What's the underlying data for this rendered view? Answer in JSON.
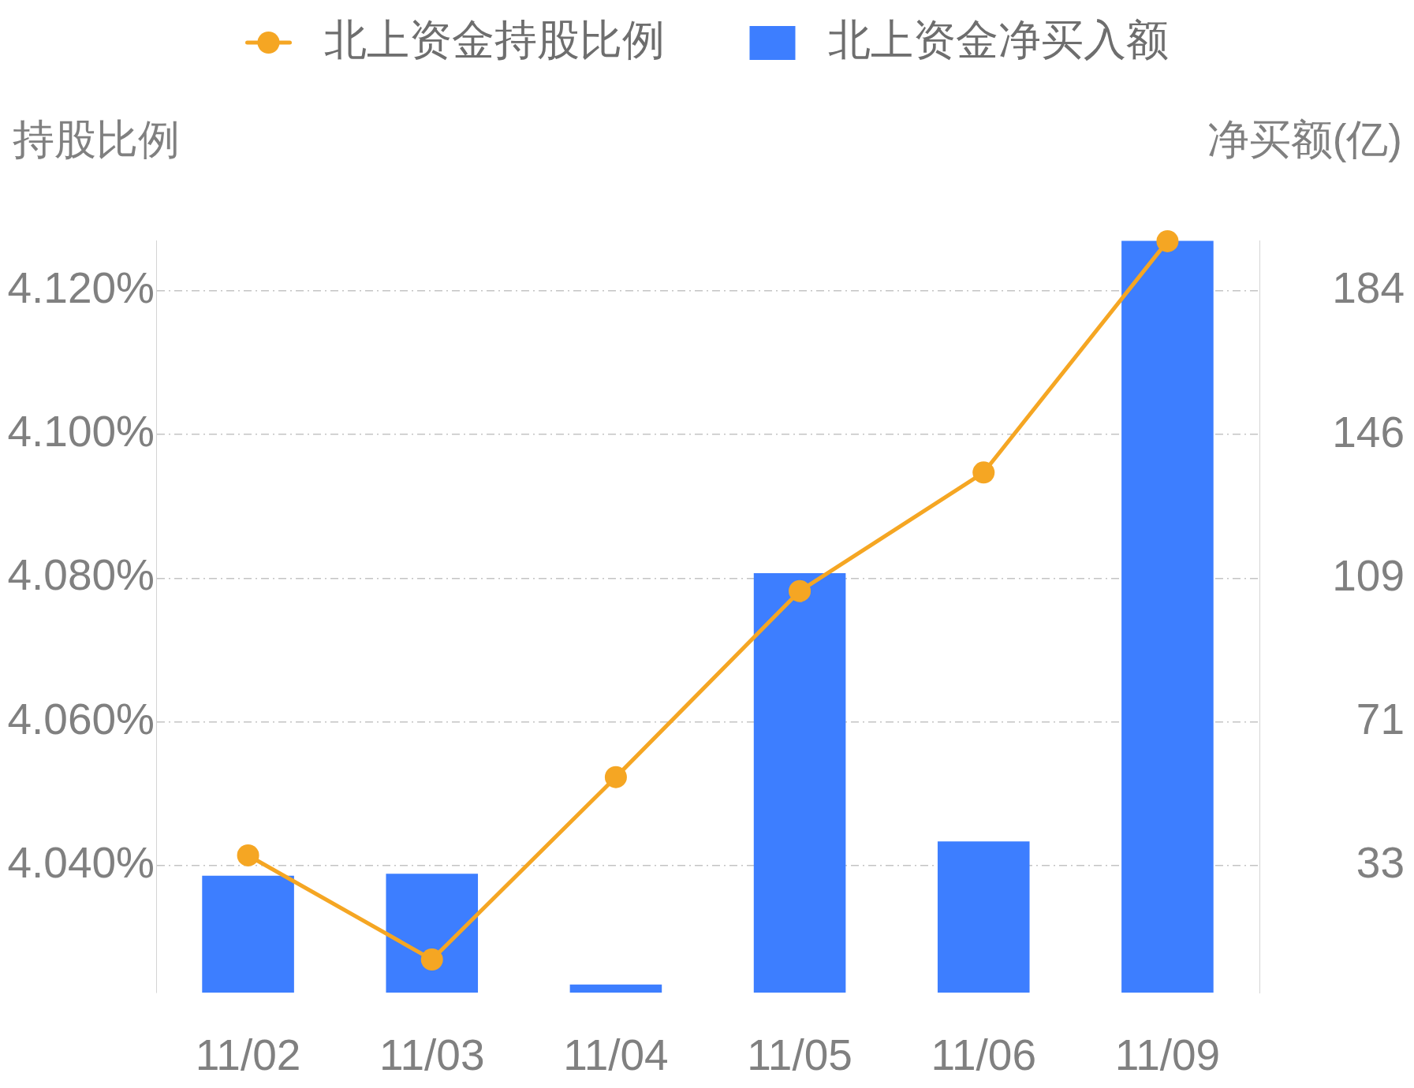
{
  "chart_data": {
    "type": "bar",
    "categories": [
      "11/02",
      "11/03",
      "11/04",
      "11/05",
      "11/06",
      "11/09"
    ],
    "series": [
      {
        "name": "北上资金持股比例",
        "type": "line",
        "color": "#f5a623",
        "values": [
          4.0414,
          4.0269,
          4.0523,
          4.0782,
          4.0947,
          4.1269
        ]
      },
      {
        "name": "北上资金净买入额",
        "type": "bar",
        "axis": "y2",
        "color": "#3d7eff",
        "values": [
          30.7,
          31.2,
          2.1,
          110.1,
          39.7,
          197.3
        ]
      }
    ],
    "ylabel": "持股比例",
    "y2label": "净买额(亿)",
    "ylim": [
      4.0223,
      4.127
    ],
    "yticks": [
      {
        "value": 4.04,
        "label": "4.040%"
      },
      {
        "value": 4.06,
        "label": "4.060%"
      },
      {
        "value": 4.08,
        "label": "4.080%"
      },
      {
        "value": 4.1,
        "label": "4.100%"
      },
      {
        "value": 4.12,
        "label": "4.120%"
      }
    ],
    "y2lim": [
      0,
      197.4
    ],
    "y2ticks": [
      {
        "value": 33.3,
        "label": "33"
      },
      71,
      {
        "value": 108.7,
        "label": "109"
      },
      {
        "value": 146.4,
        "label": "146"
      },
      {
        "value": 184.1,
        "label": "184"
      }
    ],
    "grid": "y",
    "legend": "top",
    "marker": "circle"
  }
}
